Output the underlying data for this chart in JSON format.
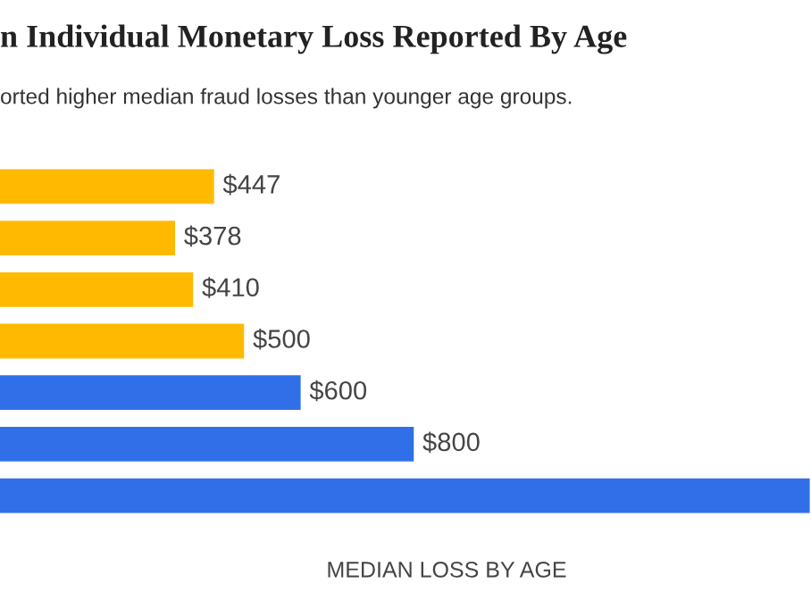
{
  "chart_data": {
    "type": "bar",
    "orientation": "horizontal",
    "title": "n Individual Monetary Loss Reported By Age",
    "subtitle": "orted higher median fraud losses than younger age groups.",
    "xlabel": "MEDIAN LOSS BY AGE",
    "categories": [
      null,
      null,
      null,
      null,
      null,
      null,
      null
    ],
    "values": [
      447,
      378,
      410,
      500,
      600,
      800,
      1500
    ],
    "colors": [
      "#ffba00",
      "#ffba00",
      "#ffba00",
      "#ffba00",
      "#316fe8",
      "#316fe8",
      "#316fe8"
    ],
    "value_labels": [
      "$447",
      "$378",
      "$410",
      "$500",
      "$600",
      "$800",
      null
    ],
    "grid": false,
    "legend": false
  }
}
